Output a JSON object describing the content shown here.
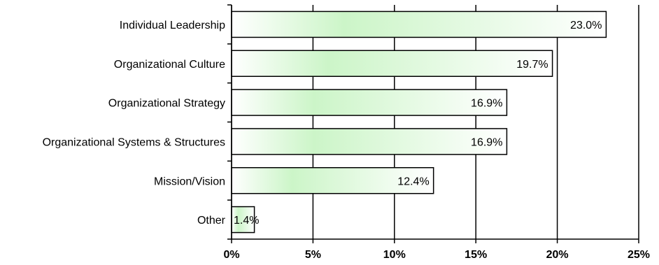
{
  "chart_data": {
    "type": "bar",
    "orientation": "horizontal",
    "categories": [
      "Individual Leadership",
      "Organizational Culture",
      "Organizational Strategy",
      "Organizational Systems & Structures",
      "Mission/Vision",
      "Other"
    ],
    "values": [
      23.0,
      19.7,
      16.9,
      16.9,
      12.4,
      1.4
    ],
    "data_labels": [
      "23.0%",
      "19.7%",
      "16.9%",
      "16.9%",
      "12.4%",
      "1.4%"
    ],
    "x_ticks": [
      "0%",
      "5%",
      "10%",
      "15%",
      "20%",
      "25%"
    ],
    "xlim": [
      0,
      25
    ],
    "grid": "vertical",
    "legend": "none",
    "bar_fill": "gradient white to light green",
    "colors": {
      "bar_light": "#ffffff",
      "bar_green": "#ccf5c8",
      "bar_edge": "#000000",
      "grid": "#000000"
    }
  }
}
